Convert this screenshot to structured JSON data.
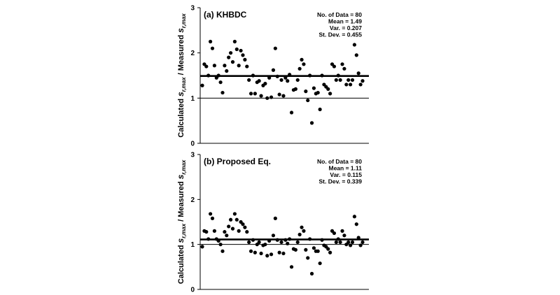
{
  "chart_data": [
    {
      "type": "scatter",
      "title": "(a) KHBDC",
      "ylabel_parts": [
        "Calculated ",
        "s",
        "r,max",
        " / Measured ",
        "s",
        "r,max"
      ],
      "ylim": [
        0,
        3
      ],
      "yticks": [
        "0",
        "1",
        "2",
        "3"
      ],
      "reference_line": 1.0,
      "mean_line": 1.49,
      "stats": [
        "No. of Data = 80",
        "Mean = 1.49",
        "Var. = 0.207",
        "St. Dev. = 0.455"
      ],
      "x": [
        1,
        2,
        3,
        4,
        5,
        6,
        7,
        8,
        9,
        10,
        11,
        12,
        13,
        14,
        15,
        16,
        17,
        18,
        19,
        20,
        21,
        22,
        23,
        24,
        25,
        26,
        27,
        28,
        29,
        30,
        31,
        32,
        33,
        34,
        35,
        36,
        37,
        38,
        39,
        40,
        41,
        42,
        43,
        44,
        45,
        46,
        47,
        48,
        49,
        50,
        51,
        52,
        53,
        54,
        55,
        56,
        57,
        58,
        59,
        60,
        61,
        62,
        63,
        64,
        65,
        66,
        67,
        68,
        69,
        70,
        71,
        72,
        73,
        74,
        75,
        76,
        77,
        78,
        79,
        80
      ],
      "values": [
        1.28,
        1.75,
        1.7,
        1.5,
        2.25,
        2.1,
        1.72,
        1.45,
        1.5,
        1.35,
        1.12,
        1.72,
        1.6,
        1.9,
        2.0,
        1.8,
        2.25,
        2.08,
        1.72,
        2.05,
        1.95,
        1.85,
        1.7,
        1.4,
        1.1,
        1.5,
        1.1,
        1.35,
        1.38,
        1.05,
        1.28,
        1.32,
        1.0,
        1.45,
        1.02,
        1.62,
        2.1,
        1.48,
        1.08,
        1.4,
        1.05,
        1.45,
        1.38,
        1.52,
        0.68,
        1.18,
        1.2,
        1.4,
        1.65,
        1.85,
        1.75,
        1.15,
        0.95,
        1.5,
        0.45,
        1.22,
        1.1,
        1.12,
        0.75,
        1.5,
        1.3,
        1.25,
        1.2,
        1.1,
        1.75,
        1.7,
        1.4,
        1.5,
        1.4,
        1.75,
        1.65,
        1.3,
        1.4,
        1.3,
        1.4,
        2.18,
        1.95,
        1.55,
        1.3,
        1.38
      ]
    },
    {
      "type": "scatter",
      "title": "(b) Proposed Eq.",
      "ylabel_parts": [
        "Calculated ",
        "s",
        "r,max",
        " / Measured ",
        "s",
        "r,max"
      ],
      "ylim": [
        0,
        3
      ],
      "yticks": [
        "0",
        "1",
        "2",
        "3"
      ],
      "reference_line": 1.0,
      "mean_line": 1.11,
      "stats": [
        "No. of Data = 80",
        "Mean = 1.11",
        "Var. = 0.115",
        "St. Dev. = 0.339"
      ],
      "x": [
        1,
        2,
        3,
        4,
        5,
        6,
        7,
        8,
        9,
        10,
        11,
        12,
        13,
        14,
        15,
        16,
        17,
        18,
        19,
        20,
        21,
        22,
        23,
        24,
        25,
        26,
        27,
        28,
        29,
        30,
        31,
        32,
        33,
        34,
        35,
        36,
        37,
        38,
        39,
        40,
        41,
        42,
        43,
        44,
        45,
        46,
        47,
        48,
        49,
        50,
        51,
        52,
        53,
        54,
        55,
        56,
        57,
        58,
        59,
        60,
        61,
        62,
        63,
        64,
        65,
        66,
        67,
        68,
        69,
        70,
        71,
        72,
        73,
        74,
        75,
        76,
        77,
        78,
        79,
        80
      ],
      "values": [
        0.95,
        1.3,
        1.28,
        1.12,
        1.68,
        1.58,
        1.3,
        1.12,
        1.08,
        1.0,
        0.85,
        1.28,
        1.2,
        1.4,
        1.55,
        1.35,
        1.68,
        1.55,
        1.3,
        1.5,
        1.45,
        1.38,
        1.28,
        1.05,
        0.85,
        1.1,
        0.82,
        1.0,
        1.05,
        0.8,
        0.98,
        1.0,
        0.75,
        1.08,
        0.78,
        1.2,
        1.58,
        1.1,
        0.82,
        1.05,
        0.8,
        1.1,
        1.02,
        1.12,
        0.5,
        0.9,
        0.88,
        1.05,
        1.22,
        1.38,
        1.3,
        0.88,
        0.7,
        1.12,
        0.35,
        0.92,
        0.85,
        0.85,
        0.58,
        1.1,
        0.98,
        0.95,
        0.9,
        0.82,
        1.3,
        1.25,
        1.05,
        1.12,
        1.05,
        1.3,
        1.2,
        1.0,
        1.05,
        0.98,
        1.05,
        1.62,
        1.45,
        1.15,
        0.98,
        1.05
      ]
    }
  ]
}
